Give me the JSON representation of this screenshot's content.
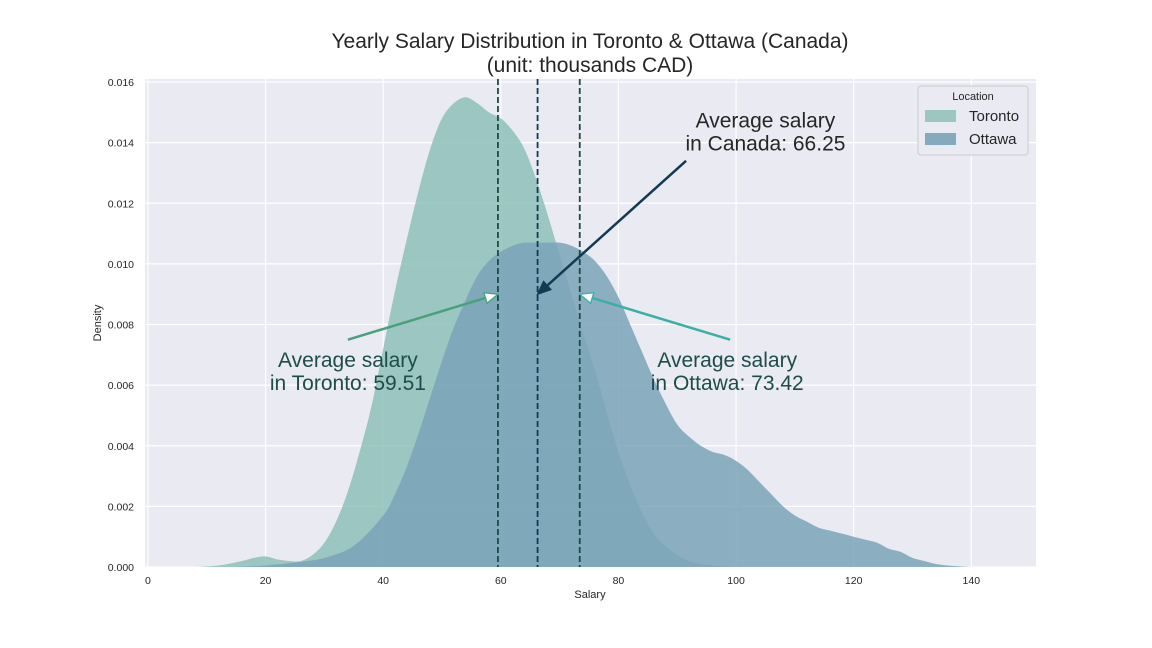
{
  "chart_data": {
    "type": "area",
    "title_line1": "Yearly Salary Distribution in Toronto & Ottawa (Canada)",
    "title_line2": "(unit: thousands CAD)",
    "xlabel": "Salary",
    "ylabel": "Density",
    "xlim": [
      -0.5,
      151
    ],
    "ylim": [
      0,
      0.0161
    ],
    "x_ticks": [
      0,
      20,
      40,
      60,
      80,
      100,
      120,
      140
    ],
    "x_tick_labels": [
      "0",
      "20",
      "40",
      "60",
      "80",
      "100",
      "120",
      "140"
    ],
    "y_ticks": [
      0,
      0.002,
      0.004,
      0.006,
      0.008,
      0.01,
      0.012,
      0.014,
      0.016
    ],
    "y_tick_labels": [
      "0.000",
      "0.002",
      "0.004",
      "0.006",
      "0.008",
      "0.010",
      "0.012",
      "0.014",
      "0.016"
    ],
    "grid": true,
    "legend": {
      "title": "Location",
      "placement": "top-right",
      "entries": [
        "Toronto",
        "Ottawa"
      ]
    },
    "series": [
      {
        "name": "Toronto",
        "color": "#8ebfb9",
        "x": [
          8,
          12,
          16,
          18,
          20,
          22,
          24,
          26,
          28,
          30,
          32,
          34,
          36,
          38,
          40,
          42,
          44,
          46,
          48,
          50,
          52,
          54,
          56,
          58,
          60,
          62,
          64,
          66,
          68,
          70,
          72,
          74,
          76,
          78,
          80,
          82,
          84,
          86,
          88,
          90,
          92,
          94,
          96,
          98,
          100
        ],
        "values": [
          0,
          5e-05,
          0.0002,
          0.0003,
          0.00035,
          0.00025,
          0.0002,
          0.0002,
          0.0004,
          0.0008,
          0.0015,
          0.0025,
          0.0038,
          0.0053,
          0.0072,
          0.0091,
          0.0108,
          0.0124,
          0.0138,
          0.0148,
          0.0153,
          0.0155,
          0.0153,
          0.015,
          0.0148,
          0.0144,
          0.0138,
          0.0128,
          0.0116,
          0.0103,
          0.009,
          0.0077,
          0.0065,
          0.0051,
          0.0038,
          0.0027,
          0.0018,
          0.0011,
          0.0007,
          0.0004,
          0.0002,
          0.0001,
          5e-05,
          2e-05,
          0
        ]
      },
      {
        "name": "Ottawa",
        "color": "#7aa3b8",
        "x": [
          15,
          20,
          25,
          30,
          35,
          40,
          42,
          44,
          46,
          48,
          50,
          52,
          54,
          56,
          58,
          60,
          62,
          64,
          66,
          68,
          70,
          72,
          74,
          76,
          78,
          80,
          82,
          84,
          86,
          88,
          90,
          92,
          94,
          96,
          98,
          100,
          102,
          104,
          106,
          108,
          110,
          112,
          114,
          116,
          118,
          120,
          122,
          124,
          126,
          128,
          130,
          132,
          134,
          136,
          138,
          140
        ],
        "values": [
          0,
          5e-05,
          0.00015,
          0.0003,
          0.0007,
          0.0017,
          0.0024,
          0.0033,
          0.0044,
          0.0056,
          0.0068,
          0.0079,
          0.0088,
          0.0096,
          0.0101,
          0.0104,
          0.0106,
          0.0107,
          0.0107,
          0.0107,
          0.0107,
          0.0106,
          0.0104,
          0.0101,
          0.0096,
          0.0089,
          0.008,
          0.0071,
          0.0062,
          0.0054,
          0.0047,
          0.0043,
          0.004,
          0.0038,
          0.0037,
          0.0035,
          0.0032,
          0.0028,
          0.0024,
          0.002,
          0.0017,
          0.0015,
          0.0013,
          0.0012,
          0.0011,
          0.001,
          0.0009,
          0.0008,
          0.0006,
          0.0005,
          0.0003,
          0.0002,
          0.0001,
          5e-05,
          2e-05,
          0
        ]
      }
    ],
    "vlines": [
      {
        "name": "toronto-mean",
        "x": 59.51,
        "color": "#1f4a44"
      },
      {
        "name": "canada-mean",
        "x": 66.25,
        "color": "#123a52"
      },
      {
        "name": "ottawa-mean",
        "x": 73.42,
        "color": "#1f4a44"
      }
    ],
    "annotations": [
      {
        "name": "toronto-annotation",
        "lines": [
          "Average salary",
          "in Toronto: 59.51"
        ],
        "text_x": 34,
        "text_y": 0.0066,
        "arrow_from": [
          34,
          0.0075
        ],
        "arrow_to": [
          59.51,
          0.009
        ],
        "arrow_color": "#4aa07d",
        "text_color": "#1d4d4a"
      },
      {
        "name": "ottawa-annotation",
        "lines": [
          "Average salary",
          "in Ottawa: 73.42"
        ],
        "text_x": 98.5,
        "text_y": 0.0066,
        "arrow_from": [
          99,
          0.0075
        ],
        "arrow_to": [
          73.42,
          0.009
        ],
        "arrow_color": "#3ab0a5",
        "text_color": "#1d4d4a"
      },
      {
        "name": "canada-annotation",
        "lines": [
          "Average salary",
          "in Canada: 66.25"
        ],
        "text_x": 105,
        "text_y": 0.0145,
        "arrow_from": [
          91.5,
          0.0134
        ],
        "arrow_to": [
          66.25,
          0.009
        ],
        "arrow_color": "#123a52",
        "text_color": "#262626"
      }
    ]
  }
}
